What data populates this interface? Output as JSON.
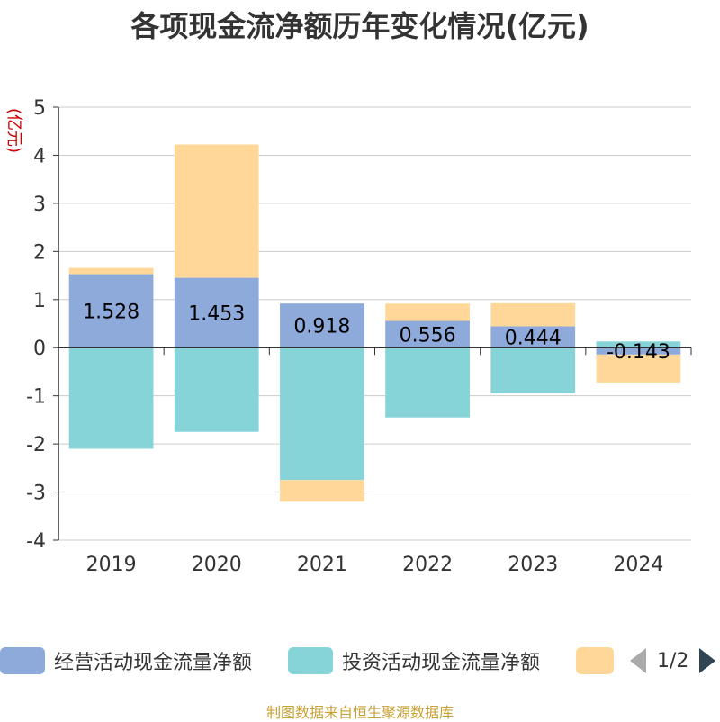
{
  "chart_data": {
    "type": "bar",
    "stacked": true,
    "title": "各项现金流净额历年变化情况(亿元)",
    "ylabel": "(亿元)",
    "categories": [
      "2019",
      "2020",
      "2021",
      "2022",
      "2023",
      "2024"
    ],
    "ylim": [
      -4,
      5
    ],
    "yticks": [
      5,
      4,
      3,
      2,
      1,
      0,
      -1,
      -2,
      -3,
      -4
    ],
    "grid": true,
    "legend_position": "bottom",
    "series": [
      {
        "name": "经营活动现金流量净额",
        "color": "#8eaadb",
        "values": [
          1.528,
          1.453,
          0.918,
          0.556,
          0.444,
          -0.143
        ],
        "labels": [
          "1.528",
          "1.453",
          "0.918",
          "0.556",
          "0.444",
          "-0.143"
        ]
      },
      {
        "name": "投资活动现金流量净额",
        "color": "#86d4d8",
        "values": [
          -2.1,
          -1.75,
          -2.75,
          -1.45,
          -0.95,
          0.13
        ]
      },
      {
        "name": "",
        "color": "#ffd899",
        "values": [
          0.13,
          2.77,
          -0.45,
          0.36,
          0.48,
          -0.58
        ]
      }
    ]
  },
  "legend": {
    "page": "1/2"
  },
  "source_note": "制图数据来自恒生聚源数据库"
}
